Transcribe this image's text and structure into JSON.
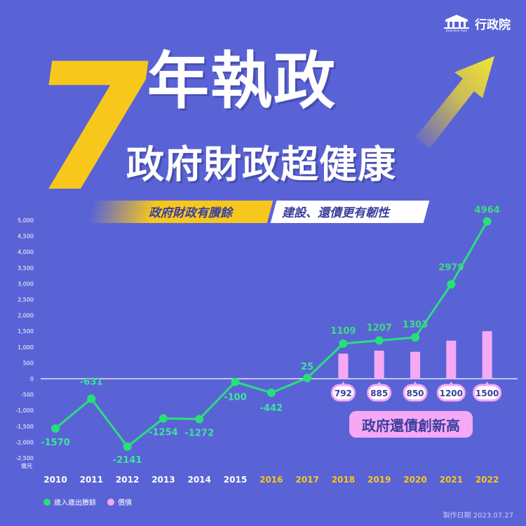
{
  "header": {
    "logo_text": "行政院",
    "logo_sub": "Executive Yuan",
    "big_number": "7",
    "title_main": "年執政",
    "title_sub": "政府財政超健康",
    "tag1": "政府財政有賸餘",
    "tag2": "建設、還債更有韌性",
    "callout": "政府還債創新高"
  },
  "colors": {
    "background": "#5a63d6",
    "surplus_line": "#28e07a",
    "repayment_bar": "#f5a9f5",
    "accent_yellow": "#f7c81b",
    "label_green": "#3ddc84"
  },
  "chart_data": {
    "type": "line+bar",
    "categories": [
      "2010",
      "2011",
      "2012",
      "2013",
      "2014",
      "2015",
      "2016",
      "2017",
      "2018",
      "2019",
      "2020",
      "2021",
      "2022"
    ],
    "highlight_categories": [
      "2016",
      "2017",
      "2018",
      "2019",
      "2020",
      "2021",
      "2022"
    ],
    "series": [
      {
        "name": "歲入歲出賸餘",
        "type": "line",
        "values": [
          -1570,
          -631,
          -2141,
          -1254,
          -1272,
          -100,
          -442,
          25,
          1109,
          1207,
          1303,
          2979,
          4964
        ]
      },
      {
        "name": "償債",
        "type": "bar",
        "values": [
          null,
          null,
          null,
          null,
          null,
          null,
          null,
          null,
          792,
          885,
          850,
          1200,
          1500
        ]
      }
    ],
    "yticks": [
      5000,
      4500,
      4000,
      3500,
      3000,
      2500,
      2000,
      1500,
      1000,
      500,
      0,
      -500,
      -1000,
      -1500,
      -2000,
      -2500
    ],
    "ytick_labels": [
      "5,000",
      "4,500",
      "4,000",
      "3,500",
      "3,000",
      "2,500",
      "2,000",
      "1,500",
      "1,000",
      "500",
      "0",
      "-500",
      "-1,000",
      "-1,500",
      "-2,000",
      "-2,500"
    ],
    "ylim": [
      -2500,
      5000
    ],
    "yunit": "億元",
    "legend_placement": "bottom-left"
  },
  "footer": "製作日期 2023.07.27"
}
